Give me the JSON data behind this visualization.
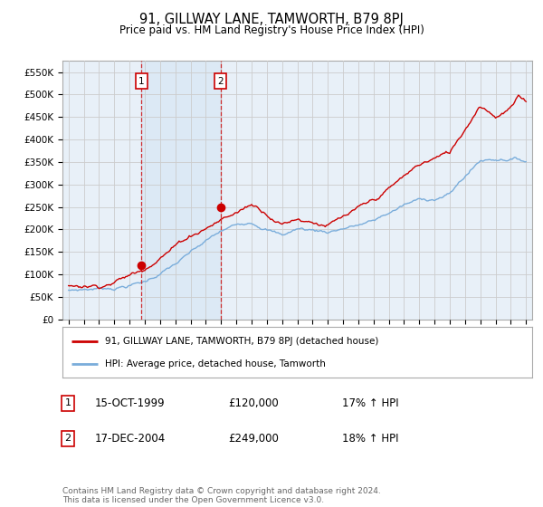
{
  "title": "91, GILLWAY LANE, TAMWORTH, B79 8PJ",
  "subtitle": "Price paid vs. HM Land Registry's House Price Index (HPI)",
  "ylim": [
    0,
    575000
  ],
  "yticks": [
    0,
    50000,
    100000,
    150000,
    200000,
    250000,
    300000,
    350000,
    400000,
    450000,
    500000,
    550000
  ],
  "x_start_year": 1995,
  "x_end_year": 2025,
  "sale1_year": 1999.79,
  "sale1_price": 120000,
  "sale1_label": "1",
  "sale1_date": "15-OCT-1999",
  "sale1_hpi": "17% ↑ HPI",
  "sale2_year": 2004.96,
  "sale2_price": 249000,
  "sale2_label": "2",
  "sale2_date": "17-DEC-2004",
  "sale2_hpi": "18% ↑ HPI",
  "line_color_property": "#cc0000",
  "line_color_hpi": "#7aaddb",
  "legend_label_property": "91, GILLWAY LANE, TAMWORTH, B79 8PJ (detached house)",
  "legend_label_hpi": "HPI: Average price, detached house, Tamworth",
  "footer": "Contains HM Land Registry data © Crown copyright and database right 2024.\nThis data is licensed under the Open Government Licence v3.0.",
  "background_color": "#ffffff",
  "grid_color": "#cccccc",
  "plot_bg_color": "#e8f0f8"
}
